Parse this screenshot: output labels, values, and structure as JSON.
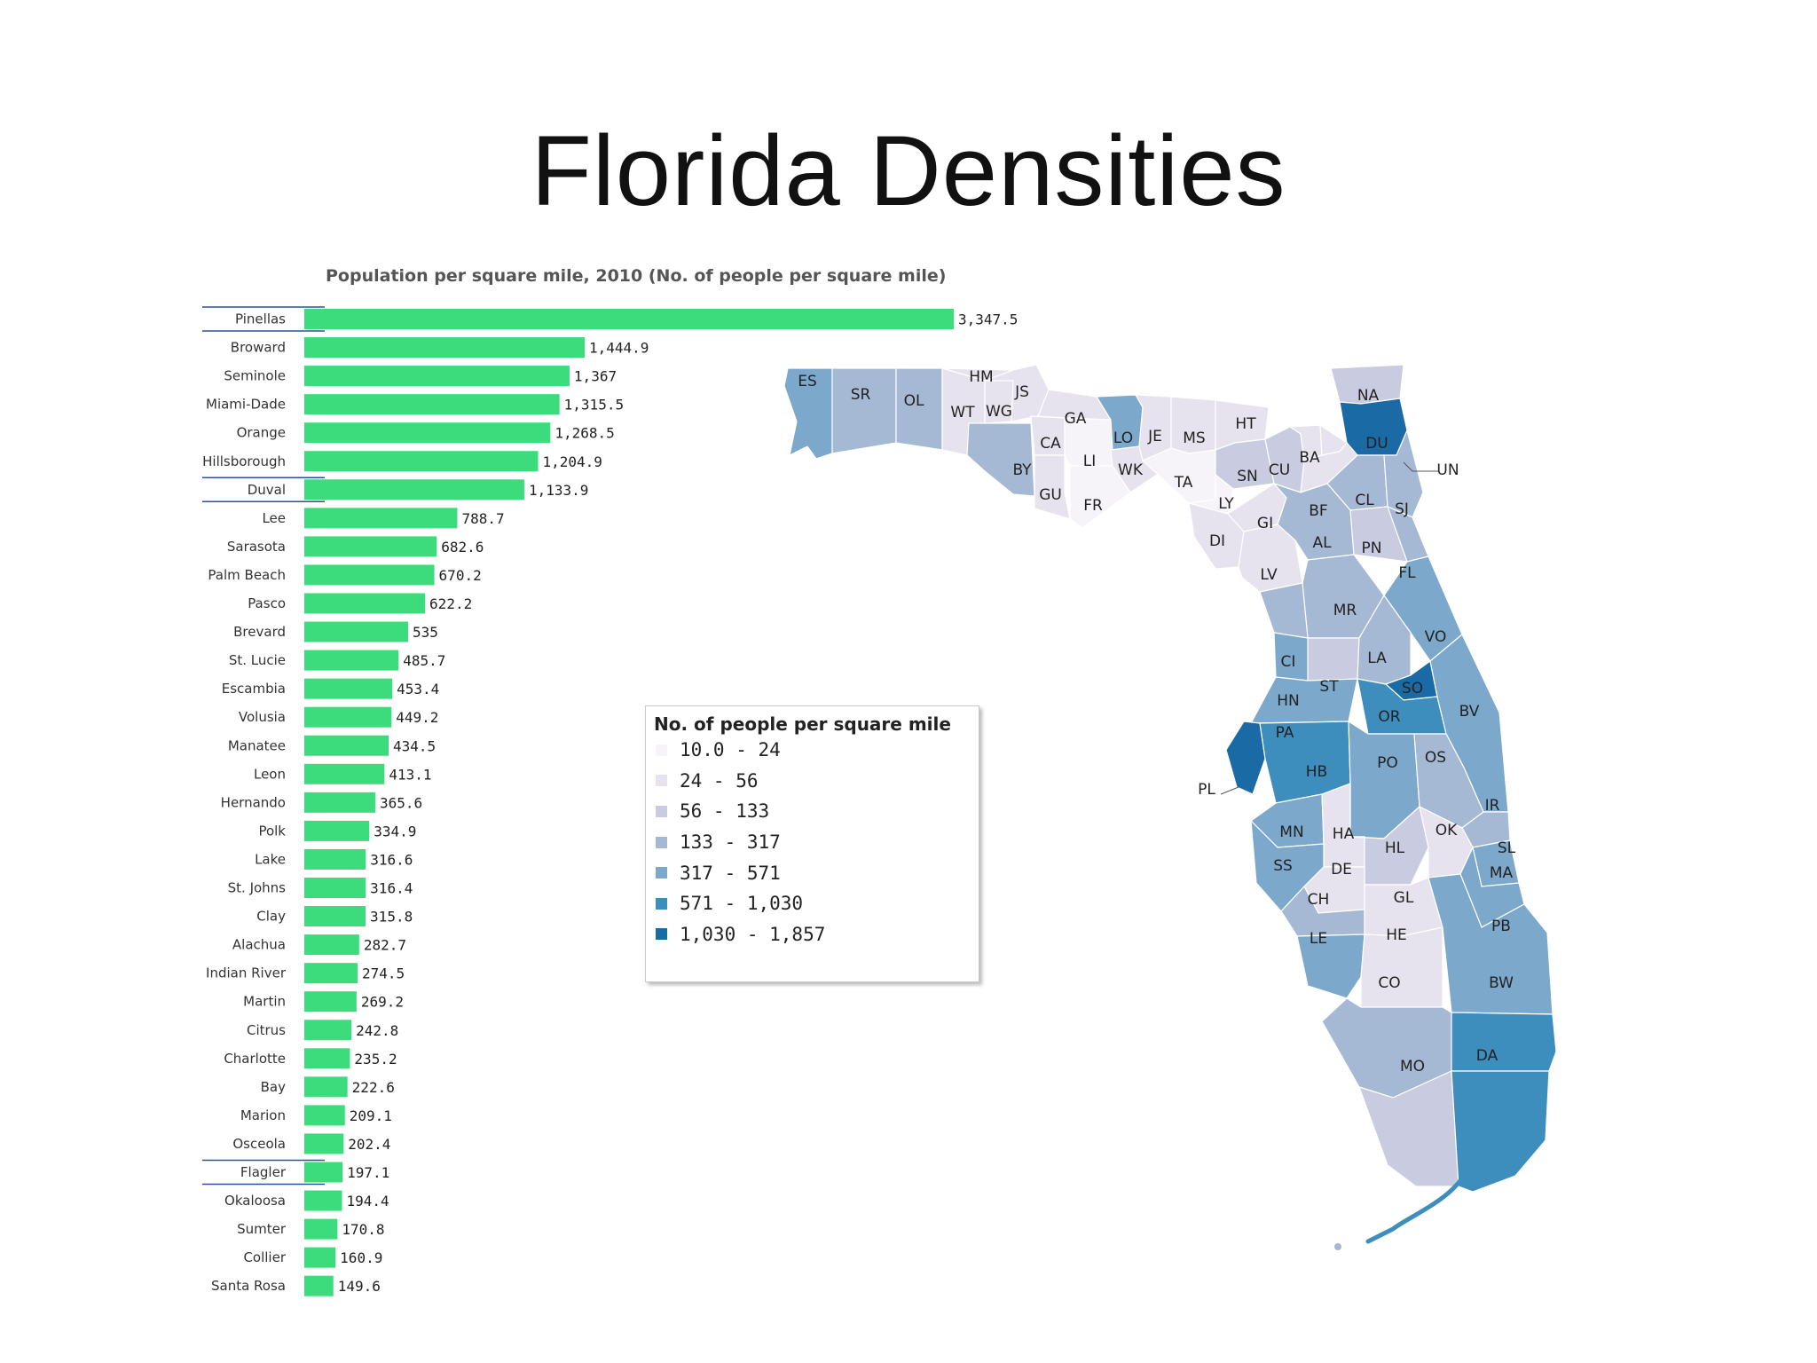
{
  "slide": {
    "title": "Florida Densities"
  },
  "chart_data": {
    "type": "bar",
    "orientation": "horizontal",
    "title": "Population per square mile, 2010 (No. of people per square mile)",
    "bar_color": "#3cdc7c",
    "highlighted": [
      "Pinellas",
      "Duval",
      "Flagler"
    ],
    "categories": [
      "Pinellas",
      "Broward",
      "Seminole",
      "Miami-Dade",
      "Orange",
      "Hillsborough",
      "Duval",
      "Lee",
      "Sarasota",
      "Palm Beach",
      "Pasco",
      "Brevard",
      "St. Lucie",
      "Escambia",
      "Volusia",
      "Manatee",
      "Leon",
      "Hernando",
      "Polk",
      "Lake",
      "St. Johns",
      "Clay",
      "Alachua",
      "Indian River",
      "Martin",
      "Citrus",
      "Charlotte",
      "Bay",
      "Marion",
      "Osceola",
      "Flagler",
      "Okaloosa",
      "Sumter",
      "Collier",
      "Santa Rosa"
    ],
    "values": [
      3347.5,
      1444.9,
      1367,
      1315.5,
      1268.5,
      1204.9,
      1133.9,
      788.7,
      682.6,
      670.2,
      622.2,
      535,
      485.7,
      453.4,
      449.2,
      434.5,
      413.1,
      365.6,
      334.9,
      316.6,
      316.4,
      315.8,
      282.7,
      274.5,
      269.2,
      242.8,
      235.2,
      222.6,
      209.1,
      202.4,
      197.1,
      194.4,
      170.8,
      160.9,
      149.6
    ],
    "value_labels": [
      "3,347.5",
      "1,444.9",
      "1,367",
      "1,315.5",
      "1,268.5",
      "1,204.9",
      "1,133.9",
      "788.7",
      "682.6",
      "670.2",
      "622.2",
      "535",
      "485.7",
      "453.4",
      "449.2",
      "434.5",
      "413.1",
      "365.6",
      "334.9",
      "316.6",
      "316.4",
      "315.8",
      "282.7",
      "274.5",
      "269.2",
      "242.8",
      "235.2",
      "222.6",
      "209.1",
      "202.4",
      "197.1",
      "194.4",
      "170.8",
      "160.9",
      "149.6"
    ]
  },
  "map": {
    "legend": {
      "title": "No. of people per square mile",
      "classes": [
        {
          "label": "10.0 - 24",
          "color": "#f6f3f9"
        },
        {
          "label": "24 - 56",
          "color": "#e6e3ee"
        },
        {
          "label": "56 - 133",
          "color": "#c9cbe0"
        },
        {
          "label": "133 - 317",
          "color": "#a5b8d4"
        },
        {
          "label": "317 - 571",
          "color": "#7ca8cc"
        },
        {
          "label": "571 - 1,030",
          "color": "#3d8dbd"
        },
        {
          "label": "1,030 - 1,857",
          "color": "#1a6aa6"
        }
      ]
    },
    "counties": [
      {
        "abbr": "ES",
        "cls": 4
      },
      {
        "abbr": "SR",
        "cls": 3
      },
      {
        "abbr": "OL",
        "cls": 3
      },
      {
        "abbr": "WT",
        "cls": 1
      },
      {
        "abbr": "HM",
        "cls": 1
      },
      {
        "abbr": "JS",
        "cls": 1
      },
      {
        "abbr": "WG",
        "cls": 1
      },
      {
        "abbr": "BY",
        "cls": 3
      },
      {
        "abbr": "CA",
        "cls": 1
      },
      {
        "abbr": "GU",
        "cls": 1
      },
      {
        "abbr": "LI",
        "cls": 0
      },
      {
        "abbr": "FR",
        "cls": 0
      },
      {
        "abbr": "GA",
        "cls": 1
      },
      {
        "abbr": "LO",
        "cls": 4
      },
      {
        "abbr": "WK",
        "cls": 1
      },
      {
        "abbr": "JE",
        "cls": 1
      },
      {
        "abbr": "MS",
        "cls": 1
      },
      {
        "abbr": "TA",
        "cls": 0
      },
      {
        "abbr": "HT",
        "cls": 1
      },
      {
        "abbr": "SN",
        "cls": 2
      },
      {
        "abbr": "CU",
        "cls": 2
      },
      {
        "abbr": "LY",
        "cls": 0
      },
      {
        "abbr": "DI",
        "cls": 1
      },
      {
        "abbr": "GI",
        "cls": 1
      },
      {
        "abbr": "LV",
        "cls": 1
      },
      {
        "abbr": "BA",
        "cls": 1
      },
      {
        "abbr": "NA",
        "cls": 2
      },
      {
        "abbr": "DU",
        "cls": 6
      },
      {
        "abbr": "UN",
        "cls": 1
      },
      {
        "abbr": "BF",
        "cls": 1
      },
      {
        "abbr": "CL",
        "cls": 3
      },
      {
        "abbr": "SJ",
        "cls": 3
      },
      {
        "abbr": "AL",
        "cls": 3
      },
      {
        "abbr": "PN",
        "cls": 2
      },
      {
        "abbr": "FL",
        "cls": 3
      },
      {
        "abbr": "MR",
        "cls": 3
      },
      {
        "abbr": "VO",
        "cls": 4
      },
      {
        "abbr": "CI",
        "cls": 3
      },
      {
        "abbr": "ST",
        "cls": 2
      },
      {
        "abbr": "LA",
        "cls": 3
      },
      {
        "abbr": "SO",
        "cls": 6
      },
      {
        "abbr": "HN",
        "cls": 4
      },
      {
        "abbr": "OR",
        "cls": 5
      },
      {
        "abbr": "BV",
        "cls": 4
      },
      {
        "abbr": "PA",
        "cls": 4
      },
      {
        "abbr": "PL",
        "cls": 6
      },
      {
        "abbr": "HB",
        "cls": 5
      },
      {
        "abbr": "PO",
        "cls": 4
      },
      {
        "abbr": "OS",
        "cls": 3
      },
      {
        "abbr": "IR",
        "cls": 3
      },
      {
        "abbr": "MN",
        "cls": 4
      },
      {
        "abbr": "HA",
        "cls": 1
      },
      {
        "abbr": "HL",
        "cls": 2
      },
      {
        "abbr": "OK",
        "cls": 1
      },
      {
        "abbr": "SL",
        "cls": 4
      },
      {
        "abbr": "SS",
        "cls": 4
      },
      {
        "abbr": "DE",
        "cls": 1
      },
      {
        "abbr": "MA",
        "cls": 4
      },
      {
        "abbr": "CH",
        "cls": 3
      },
      {
        "abbr": "GL",
        "cls": 1
      },
      {
        "abbr": "LE",
        "cls": 4
      },
      {
        "abbr": "HE",
        "cls": 1
      },
      {
        "abbr": "PB",
        "cls": 4
      },
      {
        "abbr": "CO",
        "cls": 3
      },
      {
        "abbr": "BW",
        "cls": 5
      },
      {
        "abbr": "MO",
        "cls": 2
      },
      {
        "abbr": "DA",
        "cls": 5
      }
    ]
  }
}
